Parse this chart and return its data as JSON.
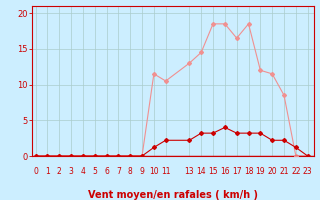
{
  "xlabel": "Vent moyen/en rafales ( km/h )",
  "bg_color": "#cceeff",
  "grid_color": "#aacccc",
  "x_ticks": [
    0,
    1,
    2,
    3,
    4,
    5,
    6,
    7,
    8,
    9,
    10,
    11,
    13,
    14,
    15,
    16,
    17,
    18,
    19,
    20,
    21,
    22,
    23
  ],
  "x_labels": [
    "0",
    "1",
    "2",
    "3",
    "4",
    "5",
    "6",
    "7",
    "8",
    "9",
    "10",
    "11",
    "13",
    "14",
    "15",
    "16",
    "17",
    "18",
    "19",
    "20",
    "21",
    "22",
    "23"
  ],
  "ylim": [
    0,
    21
  ],
  "yticks": [
    0,
    5,
    10,
    15,
    20
  ],
  "y_labels": [
    "0",
    "5",
    "10",
    "15",
    "20"
  ],
  "line1_x": [
    0,
    1,
    2,
    3,
    4,
    5,
    6,
    7,
    8,
    9,
    10,
    11,
    13,
    14,
    15,
    16,
    17,
    18,
    19,
    20,
    21,
    22,
    23
  ],
  "line1_y": [
    0,
    0,
    0,
    0,
    0,
    0,
    0,
    0,
    0,
    0,
    11.5,
    10.5,
    13,
    14.5,
    18.5,
    18.5,
    16.5,
    18.5,
    12,
    11.5,
    8.5,
    0,
    0
  ],
  "line1_color": "#f09090",
  "line2_x": [
    0,
    1,
    2,
    3,
    4,
    5,
    6,
    7,
    8,
    9,
    10,
    11,
    13,
    14,
    15,
    16,
    17,
    18,
    19,
    20,
    21,
    22,
    23
  ],
  "line2_y": [
    0,
    0,
    0,
    0,
    0,
    0,
    0,
    0,
    0,
    0,
    1.2,
    2.2,
    2.2,
    3.2,
    3.2,
    4.0,
    3.2,
    3.2,
    3.2,
    2.2,
    2.2,
    1.2,
    0
  ],
  "line2_color": "#cc0000",
  "line_width": 0.8,
  "marker": "D",
  "marker_size": 2.0,
  "red_color": "#cc0000",
  "xlabel_fontsize": 7,
  "ytick_fontsize": 6,
  "xtick_fontsize": 5.5
}
